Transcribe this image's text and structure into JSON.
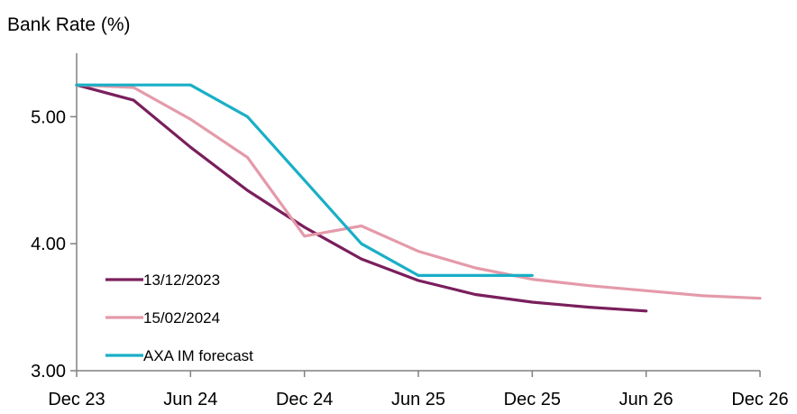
{
  "chart_data": {
    "type": "line",
    "title": "Bank Rate (%)",
    "xlabel": "",
    "ylabel": "",
    "x_tick_labels": [
      "Dec 23",
      "Jun 24",
      "Dec 24",
      "Jun 25",
      "Dec 25",
      "Jun 26",
      "Dec 26"
    ],
    "x_tick_positions": [
      0,
      6,
      12,
      18,
      24,
      30,
      36
    ],
    "x_unit": "months from Dec 23",
    "y_ticks": [
      3.0,
      4.0,
      5.0
    ],
    "y_tick_labels": [
      "3.00",
      "4.00",
      "5.00"
    ],
    "ylim": [
      3.0,
      5.5
    ],
    "xlim": [
      0,
      36
    ],
    "grid": false,
    "legend_position": "bottom-left",
    "series": [
      {
        "name": "13/12/2023",
        "color": "#7a1f5c",
        "x": [
          0,
          3,
          6,
          9,
          12,
          15,
          18,
          21,
          24,
          27,
          30
        ],
        "y": [
          5.25,
          5.13,
          4.76,
          4.42,
          4.13,
          3.88,
          3.71,
          3.6,
          3.54,
          3.5,
          3.47
        ]
      },
      {
        "name": "15/02/2024",
        "color": "#e49aaa",
        "x": [
          0,
          3,
          6,
          9,
          12,
          15,
          18,
          21,
          24,
          27,
          30,
          33,
          36
        ],
        "y": [
          5.25,
          5.23,
          4.98,
          4.68,
          4.06,
          4.14,
          3.94,
          3.81,
          3.72,
          3.67,
          3.63,
          3.59,
          3.57
        ]
      },
      {
        "name": "AXA IM forecast",
        "color": "#19afc6",
        "x": [
          0,
          6,
          9,
          12,
          15,
          18,
          24
        ],
        "y": [
          5.25,
          5.25,
          5.0,
          4.5,
          4.0,
          3.75,
          3.75
        ]
      }
    ]
  }
}
